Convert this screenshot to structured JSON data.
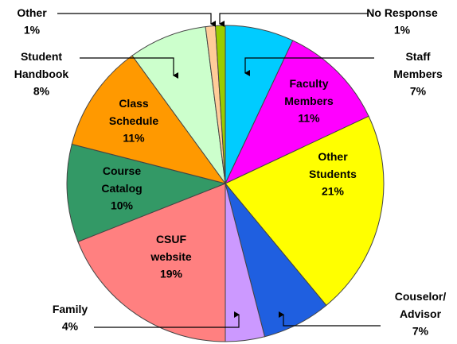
{
  "chart_data": {
    "type": "pie",
    "categories": [
      "Staff Members",
      "Faculty Members",
      "Other Students",
      "Couselor/ Advisor",
      "Family",
      "CSUF website",
      "Course Catalog",
      "Class Schedule",
      "Student Handbook",
      "Other",
      "No Response"
    ],
    "values": [
      7,
      11,
      21,
      7,
      4,
      19,
      10,
      11,
      8,
      1,
      1
    ],
    "value_labels": [
      "7%",
      "11%",
      "21%",
      "7%",
      "4%",
      "19%",
      "10%",
      "11%",
      "8%",
      "1%",
      "1%"
    ],
    "colors": [
      "#00ccff",
      "#ff00ff",
      "#ffff00",
      "#1f5fe0",
      "#cc99ff",
      "#ff8080",
      "#339966",
      "#ff9900",
      "#ccffcc",
      "#ffcc99",
      "#99cc00"
    ]
  }
}
